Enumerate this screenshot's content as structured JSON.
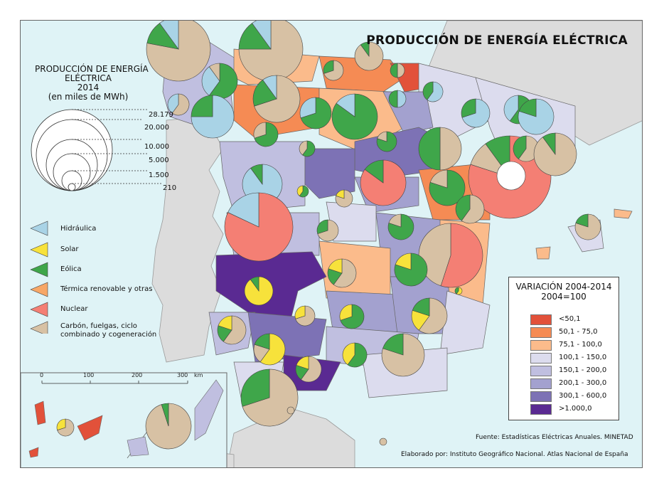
{
  "title": "PRODUCCIÓN DE ENERGÍA ELÉCTRICA",
  "size_legend": {
    "title_lines": [
      "PRODUCCIÓN DE ENERGÍA",
      "ELÉCTRICA",
      "2014",
      "(en miles de MWh)"
    ],
    "values": [
      "28.179",
      "20.000",
      "10.000",
      "5.000",
      "1.500",
      "210"
    ]
  },
  "source_legend": [
    {
      "label": "Hidráulica",
      "color": "#a9d3e6",
      "icon": "hydro-wedge-icon"
    },
    {
      "label": "Solar",
      "color": "#f7e23b",
      "icon": "solar-wedge-icon"
    },
    {
      "label": "Eólica",
      "color": "#3fa64a",
      "icon": "wind-wedge-icon"
    },
    {
      "label": "Térmica renovable y otras",
      "color": "#f7a767",
      "icon": "thermal-renewable-wedge-icon"
    },
    {
      "label": "Nuclear",
      "color": "#f47f74",
      "icon": "nuclear-wedge-icon"
    },
    {
      "label_lines": [
        "Carbón, fuelgas, ciclo",
        "combinado y cogeneración"
      ],
      "color": "#d7c1a4",
      "icon": "combustion-wedge-icon"
    }
  ],
  "variation_legend": {
    "title_lines": [
      "VARIACIÓN 2004-2014",
      "2004=100"
    ],
    "classes": [
      {
        "label": "<50,1",
        "color": "#e2513a"
      },
      {
        "label": "50,1 - 75,0",
        "color": "#f58b54"
      },
      {
        "label": "75,1 - 100,0",
        "color": "#fbbb8b"
      },
      {
        "label": "100,1 - 150,0",
        "color": "#dcdcee"
      },
      {
        "label": "150,1 - 200,0",
        "color": "#c0bfe0"
      },
      {
        "label": "200,1 - 300,0",
        "color": "#a3a1cf"
      },
      {
        "label": "300,1 - 600,0",
        "color": "#7d72b5"
      },
      {
        "label": ">1.000,0",
        "color": "#5a2a92"
      }
    ]
  },
  "scale_bar": {
    "ticks": [
      "0",
      "100",
      "200",
      "300"
    ],
    "unit": "km"
  },
  "source_text": "Fuente: Estadísticas Eléctricas Anuales. MINETAD",
  "credit_text": "Elaborado por: Instituto Geográfico Nacional. Atlas Nacional de España",
  "colors": {
    "sea": "#dff3f6",
    "land_other": "#dcdcdc",
    "border": "#555555"
  }
}
